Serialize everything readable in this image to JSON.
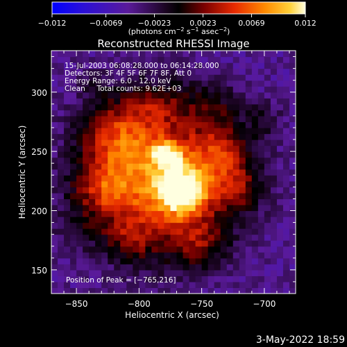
{
  "chart_data": {
    "type": "heatmap",
    "title": "Reconstructed RHESSI Image",
    "xlabel": "Heliocentric X (arcsec)",
    "ylabel": "Heliocentric Y (arcsec)",
    "xlim": [
      -870,
      -675
    ],
    "ylim": [
      130,
      335
    ],
    "xticks": [
      -850,
      -800,
      -750,
      -700
    ],
    "xtick_labels": [
      "−850",
      "−800",
      "−750",
      "−700"
    ],
    "yticks": [
      150,
      200,
      250,
      300
    ],
    "ytick_labels": [
      "150",
      "200",
      "250",
      "300"
    ],
    "colorbar": {
      "min": -0.012,
      "max": 0.012,
      "ticks": [
        -0.012,
        -0.0069,
        -0.0023,
        0.0023,
        0.0069,
        0.012
      ],
      "tick_labels": [
        "−0.012",
        "−0.0069",
        "−0.0023",
        "0.0023",
        "0.0069",
        "0.012"
      ],
      "unit_label_parts": [
        "(photons cm",
        "−2",
        " s",
        "−1",
        " asec",
        "−2",
        ")"
      ]
    },
    "annotations": [
      "15-Jul-2003 06:08:28.000 to 06:14:28.000",
      "Detectors: 3F 4F 5F 6F 7F 8F, Att 0",
      "Energy Range: 6.0 - 12.0 keV",
      "Clean     Total counts: 9.62E+03"
    ],
    "peak_label": "Position of Peak = [−765,216]",
    "peak": [
      -765,
      216
    ],
    "sources": [
      {
        "x": -765,
        "y": 216,
        "sigma_x": 14,
        "sigma_y": 14,
        "amp": 0.012
      },
      {
        "x": -778,
        "y": 248,
        "sigma_x": 9,
        "sigma_y": 8,
        "amp": 0.0075
      },
      {
        "x": -790,
        "y": 228,
        "sigma_x": 38,
        "sigma_y": 42,
        "amp": 0.0082
      },
      {
        "x": -818,
        "y": 265,
        "sigma_x": 20,
        "sigma_y": 22,
        "amp": 0.005
      },
      {
        "x": -828,
        "y": 218,
        "sigma_x": 18,
        "sigma_y": 16,
        "amp": 0.0045
      },
      {
        "x": -735,
        "y": 250,
        "sigma_x": 16,
        "sigma_y": 20,
        "amp": 0.0048
      },
      {
        "x": -720,
        "y": 220,
        "sigma_x": 14,
        "sigma_y": 16,
        "amp": 0.004
      },
      {
        "x": -752,
        "y": 172,
        "sigma_x": 16,
        "sigma_y": 14,
        "amp": 0.0042
      },
      {
        "x": -808,
        "y": 175,
        "sigma_x": 14,
        "sigma_y": 12,
        "amp": 0.0035
      },
      {
        "x": -785,
        "y": 290,
        "sigma_x": 14,
        "sigma_y": 12,
        "amp": 0.0032
      },
      {
        "x": -745,
        "y": 292,
        "sigma_x": 12,
        "sigma_y": 12,
        "amp": 0.003
      },
      {
        "x": -700,
        "y": 278,
        "sigma_x": 10,
        "sigma_y": 12,
        "amp": 0.0025
      },
      {
        "x": -852,
        "y": 182,
        "sigma_x": 10,
        "sigma_y": 12,
        "amp": 0.0022
      },
      {
        "x": -838,
        "y": 310,
        "sigma_x": 9,
        "sigma_y": 8,
        "amp": 0.0018
      }
    ],
    "background": {
      "value": -0.0045,
      "edge_falloff": 0.0035
    }
  },
  "footer": {
    "date": "3-May-2022 18:59"
  }
}
